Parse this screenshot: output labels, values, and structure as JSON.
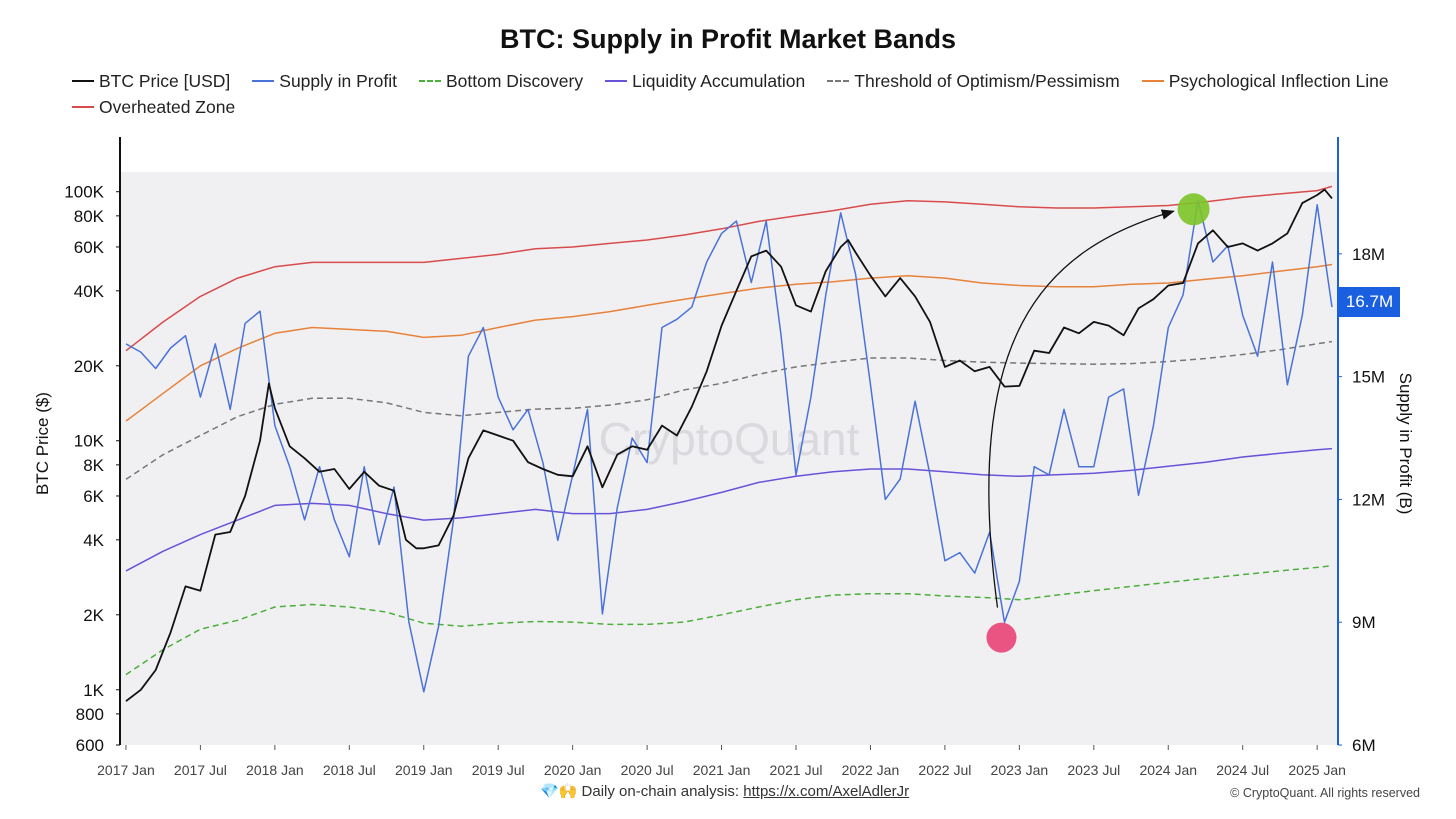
{
  "title": "BTC: Supply in Profit Market Bands",
  "legend": [
    {
      "label": "BTC Price [USD]",
      "color": "#111111",
      "dashed": false
    },
    {
      "label": "Supply in Profit",
      "color": "#4a72d8",
      "dashed": false
    },
    {
      "label": "Bottom Discovery",
      "color": "#4caf3a",
      "dashed": true
    },
    {
      "label": "Liquidity Accumulation",
      "color": "#6a52d8",
      "dashed": false
    },
    {
      "label": "Threshold of Optimism/Pessimism",
      "color": "#777777",
      "dashed": true
    },
    {
      "label": "Psychological Inflection Line",
      "color": "#e8823a",
      "dashed": false
    },
    {
      "label": "Overheated Zone",
      "color": "#d94b4b",
      "dashed": false
    }
  ],
  "watermark": "CryptoQuant",
  "footer": {
    "emoji": "💎🙌",
    "text": "Daily on-chain analysis:",
    "link": "https://x.com/AxelAdlerJr",
    "copyright": "© CryptoQuant. All rights reserved"
  },
  "current_value_badge": "16.7M",
  "colors": {
    "plot_bg": "#f0f0f3",
    "price": "#111111",
    "supply": "#4a72d8",
    "bottom": "#4caf3a",
    "liquidity": "#6a52d8",
    "threshold": "#777777",
    "psych": "#e8823a",
    "overheated": "#d94b4b",
    "right_axis": "#1a5fe0",
    "low_marker": "#e8386e",
    "high_marker": "#7cc428"
  },
  "chart_data": {
    "type": "line",
    "title": "BTC: Supply in Profit Market Bands",
    "xlabel": "",
    "ylabel_left": "BTC Price ($)",
    "ylabel_right": "Supply in Profit (B)",
    "y_left_scale": "log",
    "y_left_range": [
      600,
      120000
    ],
    "y_left_ticks": [
      "100K",
      "80K",
      "60K",
      "40K",
      "20K",
      "10K",
      "8K",
      "6K",
      "4K",
      "2K",
      "1K",
      "800",
      "600"
    ],
    "y_left_tick_values": [
      100000,
      80000,
      60000,
      40000,
      20000,
      10000,
      8000,
      6000,
      4000,
      2000,
      1000,
      800,
      600
    ],
    "y_right_range": [
      6000000,
      20000000
    ],
    "y_right_ticks": [
      "18M",
      "15M",
      "12M",
      "9M",
      "6M"
    ],
    "y_right_tick_values": [
      18000000,
      15000000,
      12000000,
      9000000,
      6000000
    ],
    "x_ticks": [
      "2017 Jan",
      "2017 Jul",
      "2018 Jan",
      "2018 Jul",
      "2019 Jan",
      "2019 Jul",
      "2020 Jan",
      "2020 Jul",
      "2021 Jan",
      "2021 Jul",
      "2022 Jan",
      "2022 Jul",
      "2023 Jan",
      "2023 Jul",
      "2024 Jan",
      "2024 Jul",
      "2025 Jan"
    ],
    "x_tick_values": [
      2017.0,
      2017.5,
      2018.0,
      2018.5,
      2019.0,
      2019.5,
      2020.0,
      2020.5,
      2021.0,
      2021.5,
      2022.0,
      2022.5,
      2023.0,
      2023.5,
      2024.0,
      2024.5,
      2025.0
    ],
    "x_range": [
      2016.96,
      2025.14
    ],
    "grid": false,
    "legend_position": "top",
    "series": [
      {
        "name": "BTC Price [USD]",
        "axis": "left",
        "x": [
          2017.0,
          2017.1,
          2017.2,
          2017.3,
          2017.4,
          2017.5,
          2017.6,
          2017.7,
          2017.8,
          2017.9,
          2017.96,
          2018.0,
          2018.1,
          2018.2,
          2018.3,
          2018.4,
          2018.5,
          2018.6,
          2018.7,
          2018.8,
          2018.88,
          2018.95,
          2019.0,
          2019.1,
          2019.2,
          2019.3,
          2019.4,
          2019.5,
          2019.6,
          2019.7,
          2019.8,
          2019.9,
          2020.0,
          2020.1,
          2020.2,
          2020.3,
          2020.4,
          2020.5,
          2020.6,
          2020.7,
          2020.8,
          2020.9,
          2021.0,
          2021.1,
          2021.2,
          2021.3,
          2021.4,
          2021.5,
          2021.6,
          2021.7,
          2021.8,
          2021.85,
          2021.9,
          2022.0,
          2022.1,
          2022.2,
          2022.3,
          2022.4,
          2022.5,
          2022.6,
          2022.7,
          2022.8,
          2022.9,
          2023.0,
          2023.1,
          2023.2,
          2023.3,
          2023.4,
          2023.5,
          2023.6,
          2023.7,
          2023.8,
          2023.9,
          2024.0,
          2024.1,
          2024.2,
          2024.3,
          2024.4,
          2024.5,
          2024.6,
          2024.7,
          2024.8,
          2024.9,
          2025.0,
          2025.05,
          2025.1
        ],
        "y": [
          900,
          1000,
          1200,
          1700,
          2600,
          2500,
          4200,
          4300,
          6000,
          10000,
          17000,
          13500,
          9500,
          8500,
          7500,
          7700,
          6400,
          7500,
          6600,
          6300,
          4000,
          3700,
          3700,
          3800,
          5000,
          8500,
          11000,
          10500,
          10000,
          8200,
          7700,
          7300,
          7200,
          9500,
          6500,
          8800,
          9500,
          9200,
          11500,
          10500,
          13700,
          19000,
          29000,
          40000,
          55000,
          58000,
          50000,
          35000,
          33000,
          48000,
          60000,
          64000,
          57000,
          46000,
          38000,
          45000,
          38000,
          30000,
          19800,
          21000,
          19000,
          19800,
          16500,
          16600,
          23000,
          22500,
          28500,
          27000,
          30000,
          29000,
          26500,
          34000,
          37000,
          42000,
          43000,
          62000,
          70000,
          60000,
          62000,
          58000,
          62000,
          68000,
          90000,
          97000,
          102000,
          94000
        ]
      },
      {
        "name": "Supply in Profit",
        "axis": "right",
        "x": [
          2017.0,
          2017.1,
          2017.2,
          2017.3,
          2017.4,
          2017.5,
          2017.6,
          2017.7,
          2017.8,
          2017.9,
          2018.0,
          2018.1,
          2018.2,
          2018.3,
          2018.4,
          2018.5,
          2018.6,
          2018.7,
          2018.8,
          2018.9,
          2019.0,
          2019.1,
          2019.2,
          2019.3,
          2019.4,
          2019.5,
          2019.6,
          2019.7,
          2019.8,
          2019.9,
          2020.0,
          2020.1,
          2020.2,
          2020.3,
          2020.4,
          2020.5,
          2020.6,
          2020.7,
          2020.8,
          2020.9,
          2021.0,
          2021.1,
          2021.2,
          2021.3,
          2021.4,
          2021.5,
          2021.6,
          2021.7,
          2021.8,
          2021.9,
          2022.0,
          2022.1,
          2022.2,
          2022.3,
          2022.4,
          2022.5,
          2022.6,
          2022.7,
          2022.8,
          2022.9,
          2023.0,
          2023.1,
          2023.2,
          2023.3,
          2023.4,
          2023.5,
          2023.6,
          2023.7,
          2023.8,
          2023.9,
          2024.0,
          2024.1,
          2024.2,
          2024.3,
          2024.4,
          2024.5,
          2024.6,
          2024.7,
          2024.8,
          2024.9,
          2025.0,
          2025.1
        ],
        "y": [
          15800,
          15600,
          15200,
          15700,
          16000,
          14500,
          15800,
          14200,
          16300,
          16600,
          13800,
          12800,
          11500,
          12800,
          11500,
          10600,
          12800,
          10900,
          12300,
          9000,
          7300,
          8900,
          11500,
          15500,
          16200,
          14500,
          13700,
          14200,
          12900,
          11000,
          12600,
          14200,
          9200,
          11800,
          13500,
          12900,
          16200,
          16400,
          16700,
          17800,
          18500,
          18800,
          17300,
          18800,
          16000,
          12600,
          14500,
          17000,
          19000,
          17500,
          14800,
          12000,
          12500,
          14400,
          12600,
          10500,
          10700,
          10200,
          11200,
          9000,
          10000,
          12800,
          12600,
          14200,
          12800,
          12800,
          14500,
          14700,
          12100,
          13800,
          16200,
          17000,
          19300,
          17800,
          18200,
          16500,
          15500,
          17800,
          14800,
          16500,
          19200,
          16700
        ]
      },
      {
        "name": "Bottom Discovery",
        "axis": "left",
        "x": [
          2017.0,
          2017.25,
          2017.5,
          2017.75,
          2018.0,
          2018.25,
          2018.5,
          2018.75,
          2019.0,
          2019.25,
          2019.5,
          2019.75,
          2020.0,
          2020.25,
          2020.5,
          2020.75,
          2021.0,
          2021.25,
          2021.5,
          2021.75,
          2022.0,
          2022.25,
          2022.5,
          2022.75,
          2023.0,
          2023.25,
          2023.5,
          2023.75,
          2024.0,
          2024.25,
          2024.5,
          2024.75,
          2025.0,
          2025.1
        ],
        "y": [
          1150,
          1450,
          1750,
          1900,
          2150,
          2200,
          2150,
          2050,
          1850,
          1800,
          1850,
          1880,
          1870,
          1830,
          1830,
          1870,
          2000,
          2150,
          2300,
          2400,
          2430,
          2430,
          2380,
          2350,
          2300,
          2400,
          2500,
          2600,
          2700,
          2800,
          2900,
          3000,
          3100,
          3150
        ]
      },
      {
        "name": "Liquidity Accumulation",
        "axis": "left",
        "x": [
          2017.0,
          2017.25,
          2017.5,
          2017.75,
          2018.0,
          2018.25,
          2018.5,
          2018.75,
          2019.0,
          2019.25,
          2019.5,
          2019.75,
          2020.0,
          2020.25,
          2020.5,
          2020.75,
          2021.0,
          2021.25,
          2021.5,
          2021.75,
          2022.0,
          2022.25,
          2022.5,
          2022.75,
          2023.0,
          2023.25,
          2023.5,
          2023.75,
          2024.0,
          2024.25,
          2024.5,
          2024.75,
          2025.0,
          2025.1
        ],
        "y": [
          3000,
          3600,
          4200,
          4800,
          5500,
          5600,
          5500,
          5100,
          4800,
          4900,
          5100,
          5300,
          5100,
          5100,
          5300,
          5700,
          6200,
          6800,
          7200,
          7500,
          7700,
          7700,
          7500,
          7300,
          7200,
          7300,
          7400,
          7600,
          7900,
          8200,
          8600,
          8900,
          9200,
          9300
        ]
      },
      {
        "name": "Threshold of Optimism/Pessimism",
        "axis": "left",
        "x": [
          2017.0,
          2017.25,
          2017.5,
          2017.75,
          2018.0,
          2018.25,
          2018.5,
          2018.75,
          2019.0,
          2019.25,
          2019.5,
          2019.75,
          2020.0,
          2020.25,
          2020.5,
          2020.75,
          2021.0,
          2021.25,
          2021.5,
          2021.75,
          2022.0,
          2022.25,
          2022.5,
          2022.75,
          2023.0,
          2023.25,
          2023.5,
          2023.75,
          2024.0,
          2024.25,
          2024.5,
          2024.75,
          2025.0,
          2025.1
        ],
        "y": [
          7000,
          8800,
          10500,
          12500,
          14000,
          14800,
          14800,
          14200,
          13000,
          12600,
          13000,
          13400,
          13500,
          13900,
          14600,
          16000,
          17000,
          18500,
          19800,
          20700,
          21500,
          21500,
          21000,
          20700,
          20500,
          20400,
          20300,
          20400,
          20800,
          21400,
          22200,
          23200,
          24500,
          25000
        ]
      },
      {
        "name": "Psychological Inflection Line",
        "axis": "left",
        "x": [
          2017.0,
          2017.25,
          2017.5,
          2017.75,
          2018.0,
          2018.25,
          2018.5,
          2018.75,
          2019.0,
          2019.25,
          2019.5,
          2019.75,
          2020.0,
          2020.25,
          2020.5,
          2020.75,
          2021.0,
          2021.25,
          2021.5,
          2021.75,
          2022.0,
          2022.25,
          2022.5,
          2022.75,
          2023.0,
          2023.25,
          2023.5,
          2023.75,
          2024.0,
          2024.25,
          2024.5,
          2024.75,
          2025.0,
          2025.1
        ],
        "y": [
          12000,
          15500,
          20000,
          23500,
          27000,
          28500,
          28000,
          27500,
          26000,
          26500,
          28500,
          30500,
          31500,
          33000,
          35000,
          37000,
          39000,
          41000,
          42500,
          43500,
          45000,
          46000,
          45000,
          43000,
          42000,
          41500,
          41500,
          42500,
          43000,
          44500,
          46000,
          48000,
          50000,
          51000
        ]
      },
      {
        "name": "Overheated Zone",
        "axis": "left",
        "x": [
          2017.0,
          2017.25,
          2017.5,
          2017.75,
          2018.0,
          2018.25,
          2018.5,
          2018.75,
          2019.0,
          2019.25,
          2019.5,
          2019.75,
          2020.0,
          2020.25,
          2020.5,
          2020.75,
          2021.0,
          2021.25,
          2021.5,
          2021.75,
          2022.0,
          2022.25,
          2022.5,
          2022.75,
          2023.0,
          2023.25,
          2023.5,
          2023.75,
          2024.0,
          2024.25,
          2024.5,
          2024.75,
          2025.0,
          2025.1
        ],
        "y": [
          23000,
          30000,
          38000,
          45000,
          50000,
          52000,
          52000,
          52000,
          52000,
          54000,
          56000,
          59000,
          60000,
          62000,
          64000,
          67000,
          71000,
          76000,
          80000,
          84000,
          89000,
          92000,
          91000,
          89000,
          87000,
          86000,
          86000,
          87000,
          88000,
          91000,
          95000,
          98000,
          101000,
          105000
        ]
      }
    ],
    "annotations": [
      {
        "type": "marker",
        "label": "low",
        "x": 2022.88,
        "y": 1620
      },
      {
        "type": "marker",
        "label": "high",
        "x": 2024.17,
        "y": 85000
      }
    ]
  }
}
